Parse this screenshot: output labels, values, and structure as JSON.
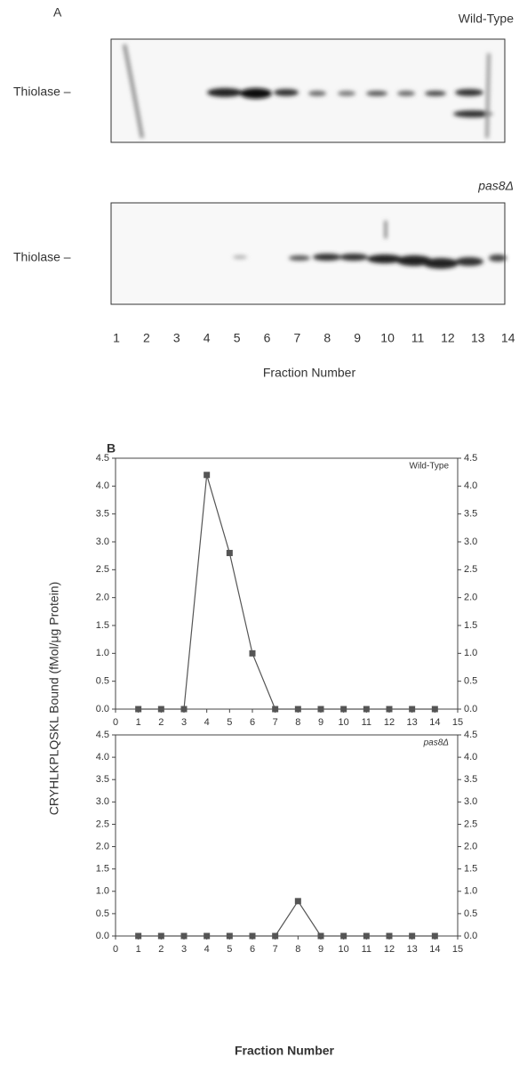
{
  "panel_a": {
    "label": "A",
    "blots": [
      {
        "title": "Wild-Type",
        "band_label": "Thiolase –"
      },
      {
        "title": "pas8Δ",
        "band_label": "Thiolase –"
      }
    ],
    "fractions": [
      "1",
      "2",
      "3",
      "4",
      "5",
      "6",
      "7",
      "8",
      "9",
      "10",
      "11",
      "12",
      "13",
      "14"
    ],
    "xlabel": "Fraction Number"
  },
  "panel_b": {
    "label": "B",
    "ylabel": "CRYHLKPLQSKL Bound (fMol/μg Protein)",
    "xlabel": "Fraction Number"
  },
  "chart_data": [
    {
      "type": "line",
      "title": "Wild-Type",
      "color": "#555555",
      "x": [
        1,
        2,
        3,
        4,
        5,
        6,
        7,
        8,
        9,
        10,
        11,
        12,
        13,
        14
      ],
      "values": [
        0,
        0,
        0,
        4.2,
        2.8,
        1.0,
        0,
        0,
        0,
        0,
        0,
        0,
        0,
        0
      ],
      "xlim": [
        0,
        15
      ],
      "xticks": [
        0,
        1,
        2,
        3,
        4,
        5,
        6,
        7,
        8,
        9,
        10,
        11,
        12,
        13,
        14,
        15
      ],
      "ylim": [
        0,
        4.5
      ],
      "yticks": [
        {
          "value": 0,
          "label": "0.0"
        },
        0.5,
        {
          "value": 1,
          "label": "1.0"
        },
        1.5,
        {
          "value": 2,
          "label": "2.0"
        },
        2.5,
        {
          "value": 3,
          "label": "3.0"
        },
        3.5,
        {
          "value": 4,
          "label": "4.0"
        },
        4.5
      ]
    },
    {
      "type": "line",
      "title": "pas8Δ",
      "color": "#555555",
      "x": [
        1,
        2,
        3,
        4,
        5,
        6,
        7,
        8,
        9,
        10,
        11,
        12,
        13,
        14
      ],
      "values": [
        0,
        0,
        0,
        0,
        0,
        0,
        0,
        0.78,
        0,
        0,
        0,
        0,
        0,
        0
      ],
      "xlim": [
        0,
        15
      ],
      "xticks": [
        0,
        1,
        2,
        3,
        4,
        5,
        6,
        7,
        8,
        9,
        10,
        11,
        12,
        13,
        14,
        15
      ],
      "ylim": [
        0,
        4.5
      ],
      "yticks": [
        {
          "value": 0,
          "label": "0.0"
        },
        0.5,
        {
          "value": 1,
          "label": "1.0"
        },
        1.5,
        {
          "value": 2,
          "label": "2.0"
        },
        2.5,
        {
          "value": 3,
          "label": "3.0"
        },
        3.5,
        {
          "value": 4,
          "label": "4.0"
        },
        4.5
      ]
    }
  ]
}
